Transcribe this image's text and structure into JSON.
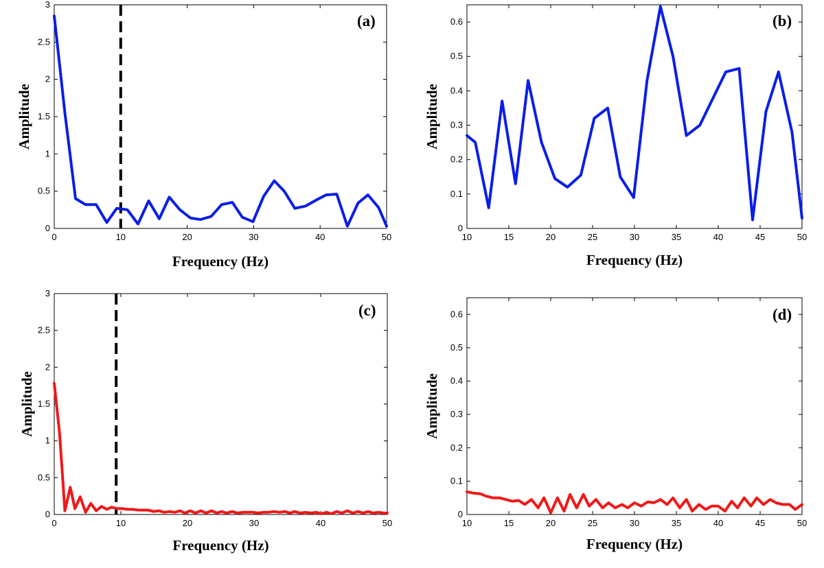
{
  "chart_data": [
    {
      "type": "line",
      "panel_label": "(a)",
      "xlabel": "Frequency (Hz)",
      "ylabel": "Amplitude",
      "xlim": [
        0,
        50
      ],
      "ylim": [
        0,
        3
      ],
      "xticks": [
        0,
        10,
        20,
        30,
        40,
        50
      ],
      "yticks": [
        0,
        0.5,
        1,
        1.5,
        2,
        2.5,
        3
      ],
      "ytick_labels": [
        "0",
        "0.5",
        "1",
        "1.5",
        "2",
        "2.5",
        "3"
      ],
      "line_color": "#0a1ee6",
      "marker_line": {
        "x": 10,
        "style": "dashed",
        "color": "#000000"
      },
      "series": [
        {
          "x": [
            0,
            1.6,
            3.2,
            4.7,
            6.3,
            7.9,
            9.4,
            11.0,
            12.6,
            14.2,
            15.8,
            17.3,
            18.9,
            20.5,
            22.0,
            23.6,
            25.2,
            26.8,
            28.3,
            29.9,
            31.5,
            33.1,
            34.6,
            36.2,
            37.8,
            39.4,
            40.9,
            42.5,
            44.1,
            45.7,
            47.2,
            48.8,
            50
          ],
          "y": [
            2.85,
            1.55,
            0.4,
            0.32,
            0.32,
            0.08,
            0.27,
            0.25,
            0.06,
            0.37,
            0.13,
            0.42,
            0.25,
            0.14,
            0.12,
            0.16,
            0.32,
            0.35,
            0.15,
            0.09,
            0.43,
            0.64,
            0.5,
            0.27,
            0.3,
            0.38,
            0.45,
            0.46,
            0.03,
            0.34,
            0.45,
            0.28,
            0.03
          ]
        }
      ]
    },
    {
      "type": "line",
      "panel_label": "(b)",
      "xlabel": "Frequency (Hz)",
      "ylabel": "Amplitude",
      "xlim": [
        10,
        50
      ],
      "ylim": [
        0,
        0.65
      ],
      "xticks": [
        10,
        15,
        20,
        25,
        30,
        35,
        40,
        45,
        50
      ],
      "yticks": [
        0,
        0.1,
        0.2,
        0.3,
        0.4,
        0.5,
        0.6
      ],
      "ytick_labels": [
        "0",
        "0.1",
        "0.2",
        "0.3",
        "0.4",
        "0.5",
        "0.6"
      ],
      "line_color": "#0a1ee6",
      "series": [
        {
          "x": [
            10,
            11,
            12.6,
            14.2,
            15.8,
            17.3,
            18.9,
            20.5,
            22.0,
            23.6,
            25.2,
            26.8,
            28.3,
            29.9,
            31.5,
            33.1,
            34.6,
            36.2,
            37.8,
            39.4,
            40.9,
            42.5,
            44.1,
            45.7,
            47.2,
            48.8,
            50
          ],
          "y": [
            0.27,
            0.25,
            0.06,
            0.37,
            0.13,
            0.43,
            0.25,
            0.145,
            0.12,
            0.155,
            0.32,
            0.35,
            0.15,
            0.09,
            0.43,
            0.645,
            0.5,
            0.27,
            0.3,
            0.38,
            0.455,
            0.465,
            0.025,
            0.34,
            0.455,
            0.28,
            0.03
          ]
        }
      ]
    },
    {
      "type": "line",
      "panel_label": "(c)",
      "xlabel": "Frequency (Hz)",
      "ylabel": "Amplitude",
      "xlim": [
        0,
        50
      ],
      "ylim": [
        0,
        3
      ],
      "xticks": [
        0,
        10,
        20,
        30,
        40,
        50
      ],
      "yticks": [
        0,
        0.5,
        1,
        1.5,
        2,
        2.5,
        3
      ],
      "ytick_labels": [
        "0",
        "0.5",
        "1",
        "1.5",
        "2",
        "2.5",
        "3"
      ],
      "line_color": "#f01818",
      "marker_line": {
        "x": 9.3,
        "style": "dashed",
        "color": "#000000"
      },
      "series": [
        {
          "x": [
            0,
            0.8,
            1.6,
            2.4,
            3.1,
            3.9,
            4.7,
            5.5,
            6.3,
            7.1,
            7.9,
            8.6,
            9.4,
            10.2,
            11.0,
            11.8,
            12.6,
            13.4,
            14.1,
            14.9,
            15.7,
            16.5,
            17.3,
            18.1,
            18.9,
            19.6,
            20.4,
            21.2,
            22.0,
            22.8,
            23.6,
            24.4,
            25.1,
            25.9,
            26.7,
            27.5,
            28.3,
            29.1,
            29.9,
            30.6,
            31.4,
            32.2,
            33.0,
            33.8,
            34.6,
            35.4,
            36.1,
            36.9,
            37.7,
            38.5,
            39.3,
            40.1,
            40.9,
            41.6,
            42.4,
            43.2,
            44.0,
            44.8,
            45.6,
            46.4,
            47.1,
            47.9,
            48.7,
            49.5,
            50
          ],
          "y": [
            1.78,
            1.1,
            0.05,
            0.37,
            0.08,
            0.24,
            0.03,
            0.15,
            0.05,
            0.11,
            0.07,
            0.1,
            0.08,
            0.08,
            0.07,
            0.07,
            0.06,
            0.06,
            0.06,
            0.04,
            0.05,
            0.03,
            0.04,
            0.03,
            0.05,
            0.02,
            0.05,
            0.02,
            0.05,
            0.02,
            0.05,
            0.02,
            0.04,
            0.02,
            0.04,
            0.02,
            0.03,
            0.03,
            0.03,
            0.02,
            0.03,
            0.03,
            0.04,
            0.03,
            0.04,
            0.02,
            0.04,
            0.02,
            0.03,
            0.02,
            0.03,
            0.01,
            0.03,
            0.01,
            0.04,
            0.02,
            0.05,
            0.02,
            0.04,
            0.02,
            0.04,
            0.02,
            0.03,
            0.02,
            0.02
          ]
        }
      ]
    },
    {
      "type": "line",
      "panel_label": "(d)",
      "xlabel": "Frequency (Hz)",
      "ylabel": "Amplitude",
      "xlim": [
        10,
        50
      ],
      "ylim": [
        0,
        0.65
      ],
      "xticks": [
        10,
        15,
        20,
        25,
        30,
        35,
        40,
        45,
        50
      ],
      "yticks": [
        0,
        0.1,
        0.2,
        0.3,
        0.4,
        0.5,
        0.6
      ],
      "ytick_labels": [
        "0",
        "0.1",
        "0.2",
        "0.3",
        "0.4",
        "0.5",
        "0.6"
      ],
      "line_color": "#f01818",
      "series": [
        {
          "x": [
            10,
            10.8,
            11.6,
            12.3,
            13.1,
            13.9,
            14.6,
            15.4,
            16.2,
            16.9,
            17.7,
            18.5,
            19.2,
            20.0,
            20.8,
            21.6,
            22.3,
            23.1,
            23.9,
            24.6,
            25.4,
            26.2,
            26.9,
            27.7,
            28.5,
            29.2,
            30.0,
            30.8,
            31.6,
            32.3,
            33.1,
            33.9,
            34.6,
            35.4,
            36.2,
            36.9,
            37.7,
            38.5,
            39.2,
            40.0,
            40.8,
            41.6,
            42.3,
            43.1,
            43.9,
            44.6,
            45.4,
            46.2,
            46.9,
            47.7,
            48.5,
            49.2,
            50
          ],
          "y": [
            0.068,
            0.064,
            0.062,
            0.055,
            0.05,
            0.05,
            0.045,
            0.04,
            0.042,
            0.03,
            0.045,
            0.02,
            0.05,
            0.005,
            0.05,
            0.01,
            0.06,
            0.02,
            0.06,
            0.025,
            0.045,
            0.02,
            0.035,
            0.02,
            0.03,
            0.02,
            0.035,
            0.025,
            0.038,
            0.035,
            0.045,
            0.03,
            0.05,
            0.02,
            0.045,
            0.01,
            0.03,
            0.015,
            0.025,
            0.025,
            0.01,
            0.04,
            0.02,
            0.05,
            0.025,
            0.05,
            0.03,
            0.045,
            0.035,
            0.03,
            0.03,
            0.015,
            0.03
          ]
        }
      ]
    }
  ]
}
